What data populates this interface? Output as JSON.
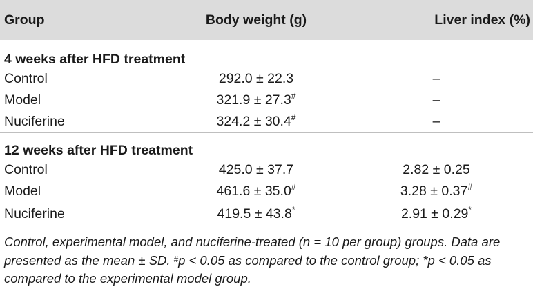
{
  "table": {
    "headers": {
      "group": "Group",
      "body_weight": "Body weight (g)",
      "liver_index": "Liver index (%)"
    },
    "sections": [
      {
        "title": "4 weeks after HFD treatment",
        "rows": [
          {
            "group": "Control",
            "body_weight": "292.0 ± 22.3",
            "body_weight_mark": "",
            "liver_index": "–",
            "liver_index_mark": ""
          },
          {
            "group": "Model",
            "body_weight": "321.9 ± 27.3",
            "body_weight_mark": "#",
            "liver_index": "–",
            "liver_index_mark": ""
          },
          {
            "group": "Nuciferine",
            "body_weight": "324.2 ± 30.4",
            "body_weight_mark": "#",
            "liver_index": "–",
            "liver_index_mark": ""
          }
        ]
      },
      {
        "title": "12 weeks after HFD treatment",
        "rows": [
          {
            "group": "Control",
            "body_weight": "425.0 ± 37.7",
            "body_weight_mark": "",
            "liver_index": "2.82 ± 0.25",
            "liver_index_mark": ""
          },
          {
            "group": "Model",
            "body_weight": "461.6 ± 35.0",
            "body_weight_mark": "#",
            "liver_index": "3.28 ± 0.37",
            "liver_index_mark": "#"
          },
          {
            "group": "Nuciferine",
            "body_weight": "419.5 ± 43.8",
            "body_weight_mark": "*",
            "liver_index": "2.91 ± 0.29",
            "liver_index_mark": "*"
          }
        ]
      }
    ]
  },
  "footnote": {
    "part1": "Control, experimental model, and nuciferine-treated (n = 10 per group) groups. Data are presented as the mean ± SD. ",
    "mark1": "#",
    "part2": "p < 0.05 as compared to the control group; *p < 0.05 as compared to the experimental model group."
  }
}
